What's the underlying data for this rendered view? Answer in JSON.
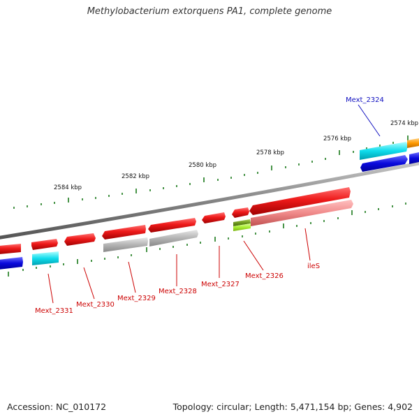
{
  "title": "Methylobacterium extorquens PA1, complete genome",
  "footer": {
    "accession": "Accession: NC_010172",
    "summary": "Topology: circular; Length: 5,471,154 bp; Genes: 4,902"
  },
  "ruler": {
    "labels": [
      "2574 kbp",
      "2576 kbp",
      "2578 kbp",
      "2580 kbp",
      "2582 kbp",
      "2584 kbp"
    ]
  },
  "gene_labels": [
    {
      "text": "Mext_2324",
      "color": "#1010c0"
    },
    {
      "text": "Mext_2326",
      "color": "#cc0000"
    },
    {
      "text": "Mext_2327",
      "color": "#cc0000"
    },
    {
      "text": "Mext_2328",
      "color": "#cc0000"
    },
    {
      "text": "Mext_2329",
      "color": "#cc0000"
    },
    {
      "text": "Mext_2330",
      "color": "#cc0000"
    },
    {
      "text": "Mext_2331",
      "color": "#cc0000"
    },
    {
      "text": "ileS",
      "color": "#cc0000"
    }
  ],
  "colors": {
    "backbone": "#858585",
    "tick": "#1a7a1a",
    "gene_red": "#e01010",
    "gene_pink": "#f08080",
    "gene_gray": "#b0b0b0",
    "gene_cyan": "#00d8e8",
    "gene_blue": "#0a0adc",
    "gene_orange": "#ff9900",
    "gene_olive": "#6e9a1e",
    "gene_lime": "#a8ee30"
  }
}
